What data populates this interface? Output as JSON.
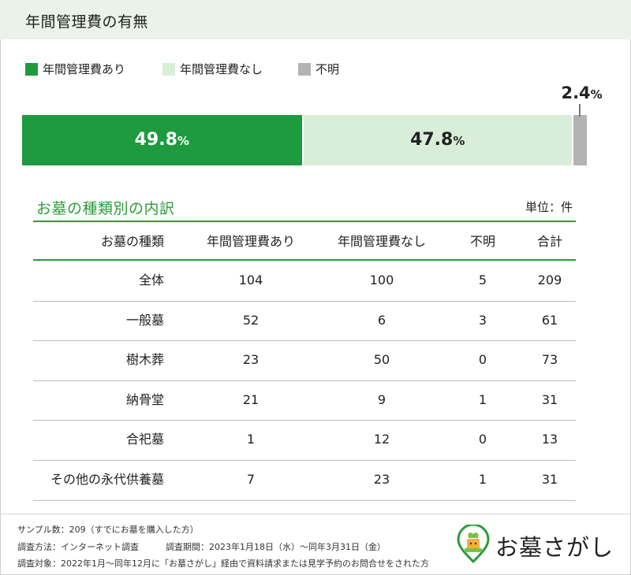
{
  "title": "年間管理費の有無",
  "legend": [
    {
      "label": "年間管理費あり",
      "color": "#1e9a3f"
    },
    {
      "label": "年間管理費なし",
      "color": "#d9eed8"
    },
    {
      "label": "不明",
      "color": "#b3b3b3"
    }
  ],
  "chart_data": {
    "type": "bar",
    "orientation": "horizontal-stacked",
    "unit": "%",
    "categories": [
      "年間管理費あり",
      "年間管理費なし",
      "不明"
    ],
    "values": [
      49.8,
      47.8,
      2.4
    ],
    "labels": [
      "49.8",
      "47.8",
      "2.4"
    ],
    "colors": [
      "#1e9a3f",
      "#d9eed8",
      "#b3b3b3"
    ],
    "label_colors": [
      "#ffffff",
      "#222222",
      "#222222"
    ],
    "total": 100
  },
  "table": {
    "title": "お墓の種類別の内訳",
    "unit": "単位：件",
    "columns": [
      "お墓の種類",
      "年間管理費あり",
      "年間管理費なし",
      "不明",
      "合計"
    ],
    "rows": [
      [
        "全体",
        "104",
        "100",
        "5",
        "209"
      ],
      [
        "一般墓",
        "52",
        "6",
        "3",
        "61"
      ],
      [
        "樹木葬",
        "23",
        "50",
        "0",
        "73"
      ],
      [
        "納骨堂",
        "21",
        "9",
        "1",
        "31"
      ],
      [
        "合祀墓",
        "1",
        "12",
        "0",
        "13"
      ],
      [
        "その他の永代供養墓",
        "7",
        "23",
        "1",
        "31"
      ]
    ]
  },
  "footer": {
    "sample": "サンプル数：209（すでにお墓を購入した方）",
    "method": "調査方法：インターネット調査",
    "period": "調査期間：2023年1月18日（水）〜同年3月31日（金）",
    "target": "調査対象：2022年1月〜同年12月に「お墓さがし」経由で資料請求または見学予約のお問合せをされた方"
  },
  "logo": {
    "text": "お墓さがし",
    "icon": "ohaka-sagashi-logo-icon"
  }
}
